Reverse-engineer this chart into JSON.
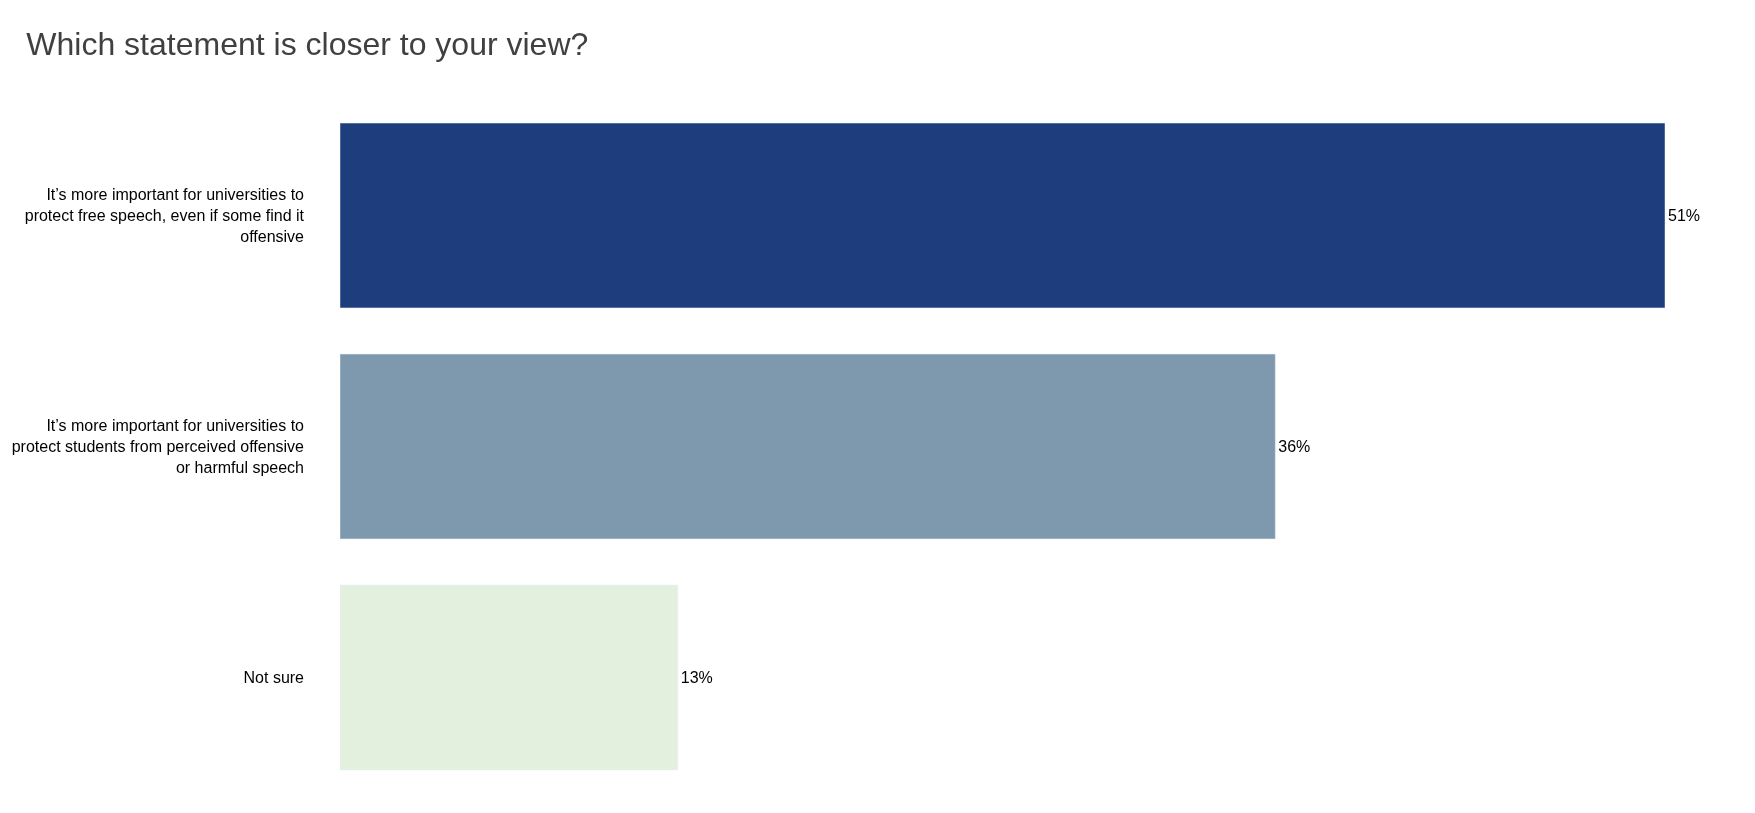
{
  "chart_data": {
    "type": "bar",
    "orientation": "horizontal",
    "title": "Which statement is closer to your view?",
    "categories": [
      "It’s more important for universities to protect free speech, even if some find it offensive",
      "It’s more important for universities to protect students from perceived offensive or harmful speech",
      "Not sure"
    ],
    "values": [
      51,
      36,
      13
    ],
    "colors": [
      "#1d3d7c",
      "#7e98ad",
      "#e3f0de"
    ],
    "value_labels": [
      "51%",
      "36%",
      "13%"
    ],
    "tick_labels": "y"
  }
}
